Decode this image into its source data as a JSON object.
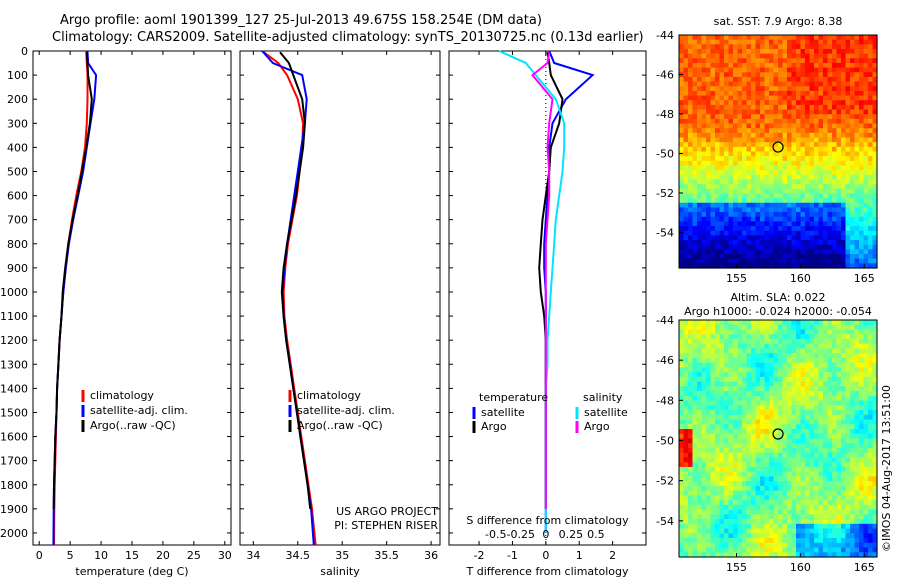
{
  "header": {
    "title1": "Argo profile: aoml 1901399_127 25-Jul-2013 49.675S 158.254E (DM data)",
    "title2": "Climatology: CARS2009. Satellite-adjusted climatology: synTS_20130725.nc (0.13d earlier)"
  },
  "footer_stamp": "©IMOS 04-Aug-2017 13:51:00",
  "colors": {
    "climatology": "#ff0000",
    "satellite": "#0000ff",
    "argo": "#000000",
    "sal_satellite": "#00e5ff",
    "sal_argo": "#ff00ff"
  },
  "chart_data": [
    {
      "type": "line",
      "name": "temperature-profile",
      "xlabel": "temperature (deg C)",
      "xlim": [
        -1,
        31
      ],
      "ylim": [
        2050,
        0
      ],
      "xticks": [
        "0",
        "5",
        "10",
        "15",
        "20",
        "25",
        "30"
      ],
      "yticks": [
        "0",
        "100",
        "200",
        "300",
        "400",
        "500",
        "600",
        "700",
        "800",
        "900",
        "1000",
        "1100",
        "1200",
        "1300",
        "1400",
        "1500",
        "1600",
        "1700",
        "1800",
        "1900",
        "2000"
      ],
      "legend": [
        "climatology",
        "satellite-adj. clim.",
        "Argo(..raw -QC)"
      ],
      "series": [
        {
          "name": "climatology",
          "color": "red",
          "x": [
            7.6,
            7.7,
            7.8,
            7.8,
            7.7,
            7.4,
            6.8,
            6.0,
            5.3,
            4.7,
            4.3,
            3.9,
            3.6,
            3.3,
            3.1,
            2.9,
            2.8,
            2.7,
            2.6,
            2.5,
            2.45,
            2.4
          ],
          "y": [
            0,
            50,
            100,
            200,
            300,
            400,
            500,
            600,
            700,
            800,
            900,
            1000,
            1100,
            1200,
            1300,
            1400,
            1500,
            1600,
            1700,
            1800,
            1900,
            2050
          ]
        },
        {
          "name": "satellite-adj. clim.",
          "color": "blue",
          "x": [
            7.8,
            7.9,
            9.2,
            8.9,
            8.3,
            7.7,
            7.1,
            6.3,
            5.5,
            4.8,
            4.3,
            3.9,
            3.6,
            3.3,
            3.1,
            2.9,
            2.8,
            2.6,
            2.5,
            2.4,
            2.35,
            2.3
          ],
          "y": [
            0,
            50,
            100,
            200,
            300,
            400,
            500,
            600,
            700,
            800,
            900,
            1000,
            1100,
            1200,
            1300,
            1400,
            1500,
            1600,
            1700,
            1800,
            1900,
            2050
          ]
        },
        {
          "name": "Argo(..raw -QC)",
          "color": "black",
          "x": [
            7.7,
            7.8,
            7.9,
            8.5,
            8.2,
            7.6,
            6.9,
            6.2,
            5.4,
            4.7,
            4.2,
            3.8,
            3.6,
            3.3,
            3.1,
            2.9,
            2.8,
            2.6,
            2.5,
            2.4,
            2.35
          ],
          "y": [
            5,
            50,
            100,
            200,
            300,
            400,
            500,
            600,
            700,
            800,
            900,
            1000,
            1100,
            1200,
            1300,
            1400,
            1500,
            1600,
            1700,
            1800,
            1900
          ]
        }
      ]
    },
    {
      "type": "line",
      "name": "salinity-profile",
      "xlabel": "salinity",
      "xlim": [
        33.85,
        36.1
      ],
      "ylim": [
        2050,
        0
      ],
      "xticks": [
        "34",
        "34.5",
        "35",
        "35.5",
        "36"
      ],
      "legend": [
        "climatology",
        "satellite-adj. clim.",
        "Argo(..raw -QC)"
      ],
      "annotation": [
        "US ARGO PROJECT",
        "PI: STEPHEN RISER"
      ],
      "series": [
        {
          "name": "climatology",
          "color": "red",
          "x": [
            34.1,
            34.28,
            34.38,
            34.5,
            34.56,
            34.55,
            34.52,
            34.49,
            34.44,
            34.39,
            34.36,
            34.34,
            34.35,
            34.38,
            34.42,
            34.46,
            34.5,
            34.54,
            34.58,
            34.62,
            34.66,
            34.7
          ],
          "y": [
            0,
            50,
            100,
            200,
            300,
            400,
            500,
            600,
            700,
            800,
            900,
            1000,
            1100,
            1200,
            1300,
            1400,
            1500,
            1600,
            1700,
            1800,
            1900,
            2050
          ]
        },
        {
          "name": "satellite-adj. clim.",
          "color": "blue",
          "x": [
            34.1,
            34.22,
            34.55,
            34.6,
            34.58,
            34.54,
            34.5,
            34.46,
            34.42,
            34.38,
            34.35,
            34.33,
            34.34,
            34.37,
            34.41,
            34.45,
            34.49,
            34.53,
            34.57,
            34.61,
            34.65,
            34.68
          ],
          "y": [
            0,
            50,
            100,
            200,
            300,
            400,
            500,
            600,
            700,
            800,
            900,
            1000,
            1100,
            1200,
            1300,
            1400,
            1500,
            1600,
            1700,
            1800,
            1900,
            2050
          ]
        },
        {
          "name": "Argo(..raw -QC)",
          "color": "black",
          "x": [
            34.3,
            34.4,
            34.45,
            34.55,
            34.58,
            34.56,
            34.52,
            34.48,
            34.43,
            34.38,
            34.34,
            34.32,
            34.34,
            34.37,
            34.41,
            34.45,
            34.49,
            34.53,
            34.57,
            34.61,
            34.64
          ],
          "y": [
            5,
            50,
            100,
            200,
            300,
            400,
            500,
            600,
            700,
            800,
            900,
            1000,
            1100,
            1200,
            1300,
            1400,
            1500,
            1600,
            1700,
            1800,
            1900
          ]
        }
      ]
    },
    {
      "type": "line",
      "name": "difference-profile",
      "xlabel": "T difference from climatology",
      "xlabel_top": "S difference from climatology",
      "xlim": [
        -2.9,
        3.0
      ],
      "ylim": [
        2050,
        0
      ],
      "xticks": [
        "-2",
        "-1",
        "0",
        "1",
        "2"
      ],
      "xticks_top": [
        "-0.5",
        "-0.25",
        "0",
        "0.25",
        "0.5"
      ],
      "legend_temperature": [
        "temperature",
        "satellite",
        "Argo"
      ],
      "legend_salinity": [
        "salinity",
        "satellite",
        "Argo"
      ],
      "series": [
        {
          "name": "temperature satellite",
          "color": "blue",
          "x": [
            0.1,
            0.25,
            1.4,
            0.6,
            0.2,
            0.1,
            0.1,
            0.05,
            0,
            -0.05,
            -0.05,
            0,
            0,
            0,
            0,
            0,
            0,
            0,
            0,
            0,
            0
          ],
          "y": [
            0,
            50,
            100,
            200,
            300,
            400,
            500,
            600,
            700,
            800,
            900,
            1000,
            1100,
            1200,
            1300,
            1400,
            1500,
            1600,
            1700,
            1800,
            2000
          ]
        },
        {
          "name": "temperature Argo",
          "color": "black",
          "x": [
            0.05,
            0.1,
            0.15,
            0.5,
            0.4,
            0.15,
            0.1,
            0.0,
            -0.1,
            -0.15,
            -0.2,
            -0.15,
            -0.05,
            0,
            0,
            0,
            0,
            0,
            0,
            0
          ],
          "y": [
            5,
            50,
            100,
            200,
            300,
            400,
            500,
            600,
            700,
            800,
            900,
            1000,
            1100,
            1200,
            1300,
            1400,
            1500,
            1600,
            1700,
            1900
          ]
        },
        {
          "name": "salinity satellite",
          "color": "cyan",
          "x": [
            -1.4,
            -0.6,
            -0.3,
            0.3,
            0.55,
            0.55,
            0.5,
            0.4,
            0.3,
            0.25,
            0.2,
            0.15,
            0.1,
            0.05,
            0.05,
            0,
            0,
            0,
            0,
            0
          ],
          "y": [
            0,
            50,
            100,
            200,
            300,
            400,
            500,
            600,
            700,
            800,
            900,
            1000,
            1100,
            1200,
            1300,
            1400,
            1500,
            1600,
            1700,
            2000
          ]
        },
        {
          "name": "salinity Argo",
          "color": "magenta",
          "x": [
            0.1,
            0.05,
            -0.4,
            0.2,
            0.1,
            0.05,
            0.1,
            0.1,
            0.05,
            0.0,
            0.0,
            0.0,
            0,
            0,
            0,
            0,
            0,
            0
          ],
          "y": [
            5,
            50,
            100,
            200,
            300,
            400,
            500,
            600,
            700,
            800,
            900,
            1000,
            1100,
            1200,
            1300,
            1500,
            1700,
            1900
          ]
        }
      ]
    },
    {
      "type": "heatmap",
      "name": "sst-map",
      "title": "sat. SST: 7.9 Argo: 8.38",
      "xlim": [
        150.5,
        166
      ],
      "ylim": [
        -55.8,
        -44
      ],
      "xticks": [
        "155",
        "160",
        "165"
      ],
      "yticks": [
        "-44",
        "-46",
        "-48",
        "-50",
        "-52",
        "-54"
      ],
      "marker": {
        "lon": 158.254,
        "lat": -49.675
      }
    },
    {
      "type": "heatmap",
      "name": "sla-map",
      "title": [
        "Altim. SLA: 0.022",
        "Argo h1000: -0.024 h2000: -0.054"
      ],
      "xlim": [
        150.5,
        166
      ],
      "ylim": [
        -55.8,
        -44
      ],
      "xticks": [
        "155",
        "160",
        "165"
      ],
      "yticks": [
        "-44",
        "-46",
        "-48",
        "-50",
        "-52",
        "-54"
      ],
      "marker": {
        "lon": 158.254,
        "lat": -49.675
      }
    }
  ]
}
